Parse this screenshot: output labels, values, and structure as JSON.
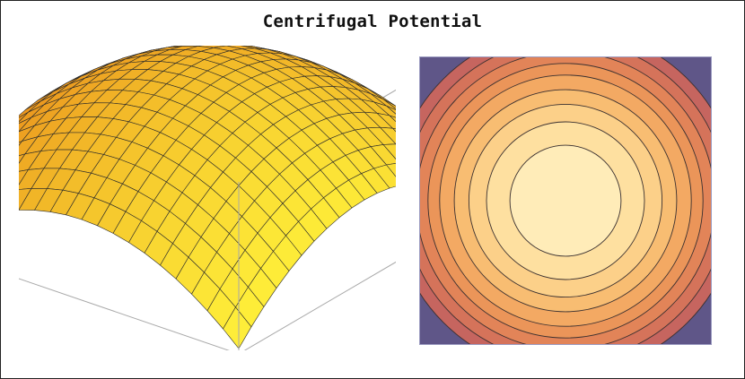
{
  "title": "Centrifugal Potential",
  "surface_plot": {
    "kind": "3d-surface",
    "function": "-(x^2 + y^2)",
    "grid_lines": 20,
    "colors": {
      "low": "#e88a1a",
      "high": "#fff23a",
      "mesh": "#2a2a2a",
      "box": "#a9a9a9"
    }
  },
  "contour_plot": {
    "kind": "contour",
    "function": "-(x^2 + y^2)",
    "levels": [
      0.19,
      0.27,
      0.33,
      0.38,
      0.43,
      0.47,
      0.51,
      0.55,
      0.59
    ],
    "colors": [
      "#ffecb8",
      "#fee0a0",
      "#fcd089",
      "#f8bd72",
      "#f3a963",
      "#eb9559",
      "#e28458",
      "#d5735a",
      "#c6655f",
      "#5f5688"
    ]
  }
}
